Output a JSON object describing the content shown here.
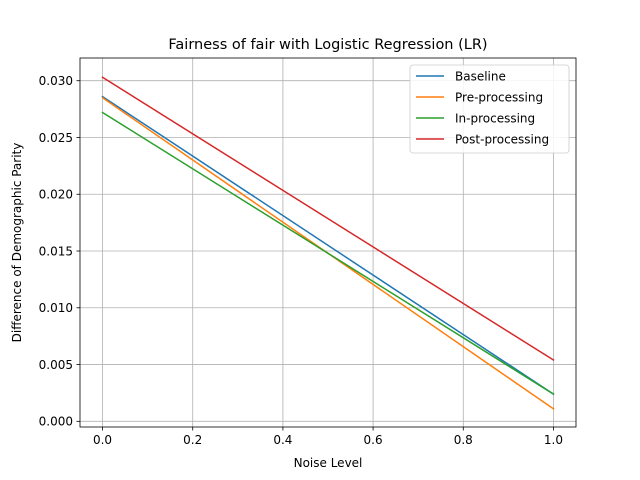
{
  "chart_data": {
    "type": "line",
    "title": "Fairness of fair with Logistic Regression (LR)",
    "xlabel": "Noise Level",
    "ylabel": "Difference of Demographic Parity",
    "xlim": [
      -0.05,
      1.05
    ],
    "ylim": [
      -0.0005,
      0.032
    ],
    "xticks": [
      0.0,
      0.2,
      0.4,
      0.6,
      0.8,
      1.0
    ],
    "xtick_labels": [
      "0.0",
      "0.2",
      "0.4",
      "0.6",
      "0.8",
      "1.0"
    ],
    "yticks": [
      0.0,
      0.005,
      0.01,
      0.015,
      0.02,
      0.025,
      0.03
    ],
    "ytick_labels": [
      "0.000",
      "0.005",
      "0.010",
      "0.015",
      "0.020",
      "0.025",
      "0.030"
    ],
    "grid": true,
    "legend_position": "top-right",
    "x": [
      0.0,
      1.0
    ],
    "series": [
      {
        "name": "Baseline",
        "color": "#1f77b4",
        "values": [
          0.0286,
          0.0024
        ]
      },
      {
        "name": "Pre-processing",
        "color": "#ff7f0e",
        "values": [
          0.0285,
          0.0011
        ]
      },
      {
        "name": "In-processing",
        "color": "#2ca02c",
        "values": [
          0.0272,
          0.0024
        ]
      },
      {
        "name": "Post-processing",
        "color": "#d62728",
        "values": [
          0.0303,
          0.0054
        ]
      }
    ]
  }
}
